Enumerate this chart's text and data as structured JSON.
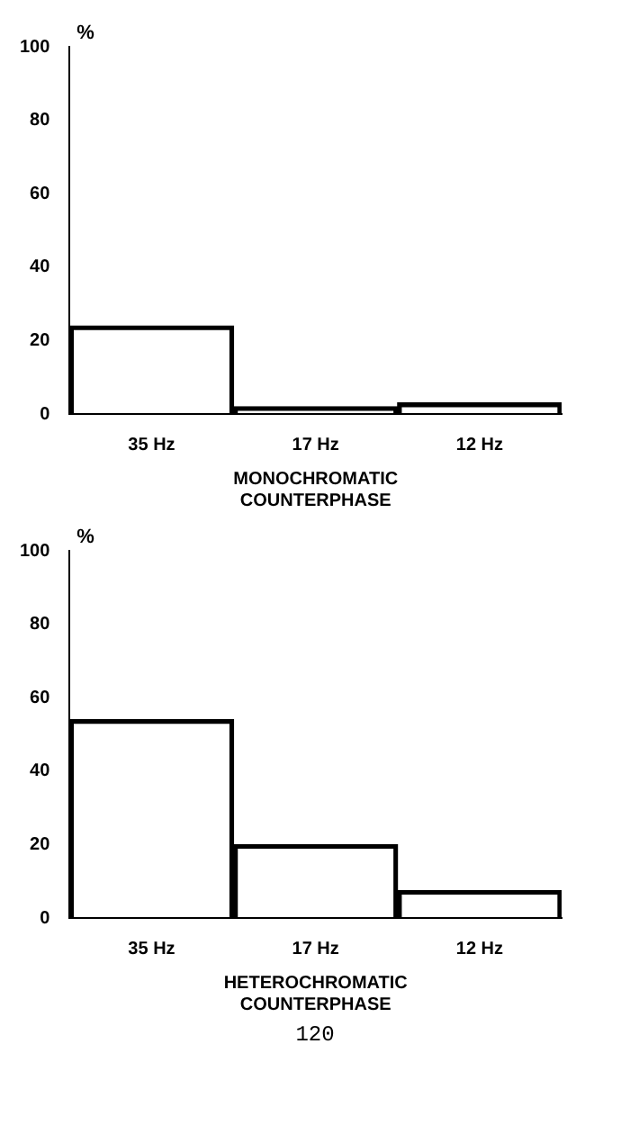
{
  "chart_data": [
    {
      "type": "bar",
      "xlabel": "MONOCHROMATIC COUNTERPHASE",
      "ylabel": "%",
      "categories": [
        "35 Hz",
        "17 Hz",
        "12 Hz"
      ],
      "values": [
        24,
        2,
        3
      ],
      "color": "#000000",
      "ylim": [
        0,
        100
      ],
      "yticks": [
        0,
        20,
        40,
        60,
        80,
        100
      ],
      "grid": false
    },
    {
      "type": "bar",
      "xlabel": "HETEROCHROMATIC COUNTERPHASE",
      "ylabel": "%",
      "categories": [
        "35 Hz",
        "17 Hz",
        "12 Hz"
      ],
      "values": [
        54,
        20,
        7.5
      ],
      "color": "#000000",
      "ylim": [
        0,
        100
      ],
      "yticks": [
        0,
        20,
        40,
        60,
        80,
        100
      ],
      "grid": false,
      "annotations": [
        "120"
      ]
    }
  ]
}
